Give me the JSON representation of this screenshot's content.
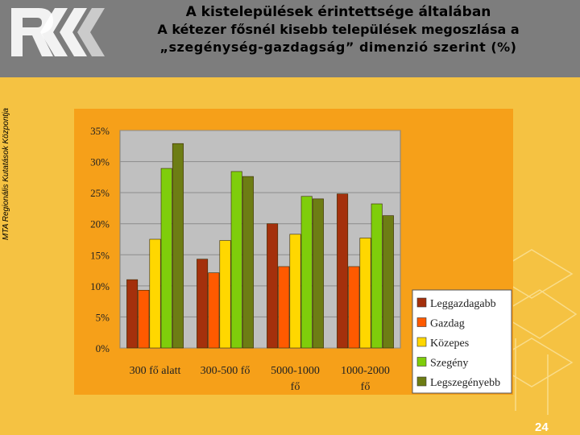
{
  "header": {
    "title_line1": "A kistelepülések érintettsége általában",
    "title_line2": "A kétezer fősnél kisebb települések megoszlása a",
    "title_line3": "„szegénység-gazdagság” dimenzió szerint (%)"
  },
  "sidebar_text": "MTA Regionális Kutatások Központja",
  "page_number": "24",
  "colors": {
    "background": "#f5c242",
    "header": "#7d7d7d",
    "chart_frame": "#f6a019",
    "plot_area": "#c0c0c0"
  },
  "chart_data": {
    "type": "bar",
    "categories": [
      [
        "300 fő alatt"
      ],
      [
        "300-500 fő"
      ],
      [
        "5000-1000",
        "fő"
      ],
      [
        "1000-2000",
        "fő"
      ]
    ],
    "series": [
      {
        "name": "Leggazdagabb",
        "color": "#a4300c",
        "values": [
          11.0,
          14.3,
          20.0,
          24.8
        ]
      },
      {
        "name": "Gazdag",
        "color": "#ff5a00",
        "values": [
          9.3,
          12.1,
          13.1,
          13.1
        ]
      },
      {
        "name": "Közepes",
        "color": "#ffd700",
        "values": [
          17.5,
          17.3,
          18.3,
          17.7
        ]
      },
      {
        "name": "Szegény",
        "color": "#7fcd0b",
        "values": [
          28.9,
          28.4,
          24.4,
          23.2
        ]
      },
      {
        "name": "Legszegényebb",
        "color": "#6d7d14",
        "values": [
          32.9,
          27.6,
          24.0,
          21.3
        ]
      }
    ],
    "yticks": [
      "0%",
      "5%",
      "10%",
      "15%",
      "20%",
      "25%",
      "30%",
      "35%"
    ],
    "ylim": [
      0,
      35
    ],
    "grid": true,
    "legend_position": "bottom-right"
  }
}
